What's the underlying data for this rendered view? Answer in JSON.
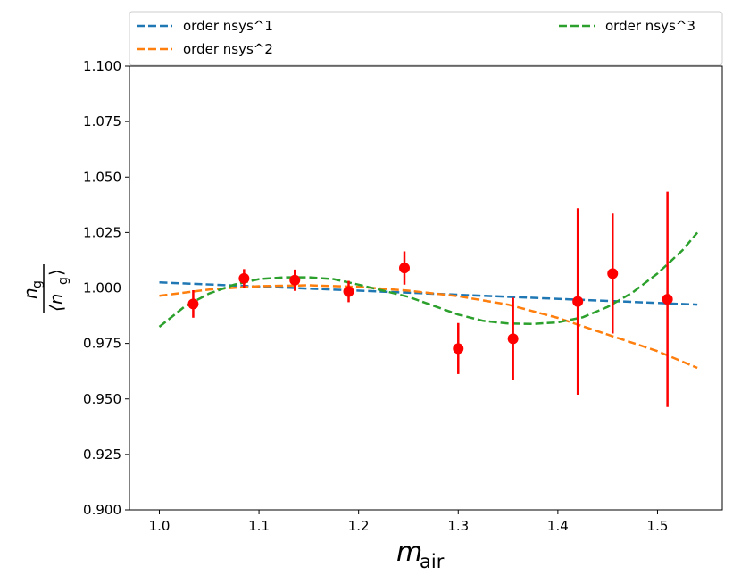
{
  "chart_data": {
    "type": "scatter",
    "title": "",
    "xlabel": "m",
    "xlabel_sub": "air",
    "ylabel_num": "n",
    "ylabel_num_sub": "g",
    "ylabel_den": "⟨n",
    "ylabel_den_sub": "g",
    "ylabel_den_close": "⟩",
    "xlim": [
      0.97,
      1.565
    ],
    "ylim": [
      0.9,
      1.1
    ],
    "x_ticks": [
      1.0,
      1.1,
      1.2,
      1.3,
      1.4,
      1.5
    ],
    "x_tick_labels": [
      "1.0",
      "1.1",
      "1.2",
      "1.3",
      "1.4",
      "1.5"
    ],
    "y_ticks": [
      0.9,
      0.925,
      0.95,
      0.975,
      1.0,
      1.025,
      1.05,
      1.075,
      1.1
    ],
    "y_tick_labels": [
      "0.900",
      "0.925",
      "0.950",
      "0.975",
      "1.000",
      "1.025",
      "1.050",
      "1.075",
      "1.100"
    ],
    "grid": false,
    "legend_position": "top, above plot",
    "points": {
      "color": "#ff0000",
      "x": [
        1.034,
        1.085,
        1.136,
        1.19,
        1.246,
        1.3,
        1.355,
        1.42,
        1.455,
        1.51
      ],
      "y": [
        0.9928,
        1.0043,
        1.0035,
        0.9984,
        1.009,
        0.9727,
        0.9771,
        0.9939,
        1.0065,
        0.9949
      ],
      "err": [
        0.0062,
        0.0042,
        0.0048,
        0.0048,
        0.0075,
        0.0115,
        0.0185,
        0.042,
        0.027,
        0.0485
      ]
    },
    "series": [
      {
        "name": "order nsys^1",
        "color": "#1f77b4",
        "x": [
          1.0,
          1.54
        ],
        "y": [
          1.0025,
          0.9925
        ]
      },
      {
        "name": "order nsys^2",
        "color": "#ff7f0e",
        "x": [
          1.0,
          1.05,
          1.1,
          1.15,
          1.2,
          1.25,
          1.3,
          1.35,
          1.4,
          1.45,
          1.5,
          1.54
        ],
        "y": [
          0.9965,
          0.9993,
          1.0008,
          1.0012,
          1.0005,
          0.9988,
          0.9963,
          0.9925,
          0.9865,
          0.979,
          0.9715,
          0.964
        ]
      },
      {
        "name": "order nsys^3",
        "color": "#2ca02c",
        "x": [
          1.0,
          1.025,
          1.05,
          1.075,
          1.1,
          1.125,
          1.15,
          1.175,
          1.2,
          1.25,
          1.3,
          1.325,
          1.35,
          1.375,
          1.4,
          1.425,
          1.45,
          1.475,
          1.5,
          1.525,
          1.54
        ],
        "y": [
          0.9825,
          0.9915,
          0.9975,
          1.0015,
          1.004,
          1.0048,
          1.0048,
          1.004,
          1.0015,
          0.996,
          0.988,
          0.9852,
          0.984,
          0.9838,
          0.9845,
          0.9868,
          0.9915,
          0.998,
          1.0065,
          1.017,
          1.025
        ]
      }
    ]
  }
}
